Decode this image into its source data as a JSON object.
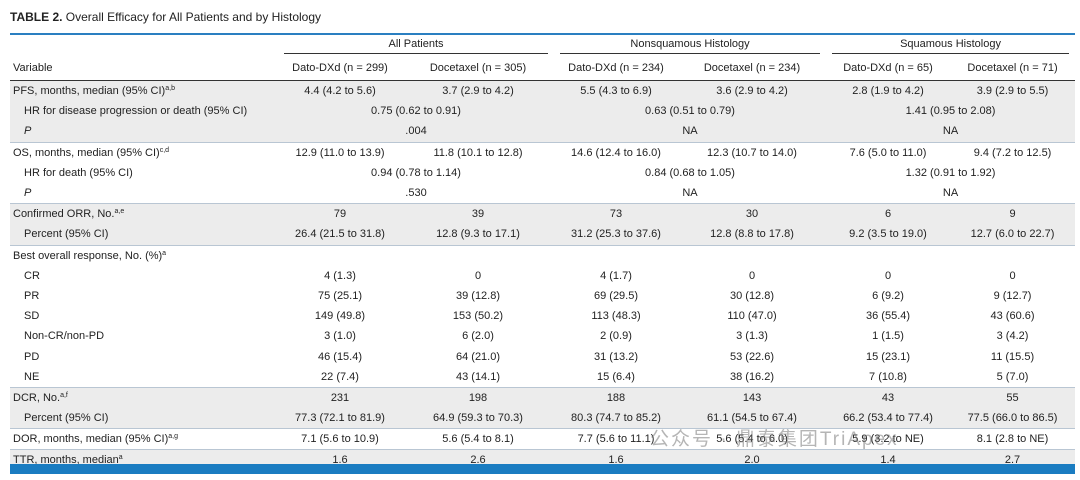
{
  "table": {
    "title": {
      "label": "TABLE 2.",
      "text": "Overall Efficacy for All Patients and by Histology"
    },
    "groups": [
      "All Patients",
      "Nonsquamous Histology",
      "Squamous Histology"
    ],
    "variable_header": "Variable",
    "columns": [
      "Dato-DXd (n = 299)",
      "Docetaxel (n = 305)",
      "Dato-DXd (n = 234)",
      "Docetaxel (n = 234)",
      "Dato-DXd (n = 65)",
      "Docetaxel (n = 71)"
    ],
    "sections": [
      {
        "label": "PFS, months, median (95% CI)",
        "sup": "a,b",
        "cells": [
          "4.4 (4.2 to 5.6)",
          "3.7 (2.9 to 4.2)",
          "5.5 (4.3 to 6.9)",
          "3.6 (2.9 to 4.2)",
          "2.8 (1.9 to 4.2)",
          "3.9 (2.9 to 5.5)"
        ],
        "subrows": [
          {
            "label": "HR for disease progression or death (95% CI)",
            "cells": [
              "0.75 (0.62 to 0.91)",
              "0.63 (0.51 to 0.79)",
              "1.41 (0.95 to 2.08)"
            ]
          },
          {
            "label": "P",
            "cells": [
              ".004",
              "NA",
              "NA"
            ]
          }
        ]
      },
      {
        "label": "OS, months, median (95% CI)",
        "sup": "c,d",
        "cells": [
          "12.9 (11.0 to 13.9)",
          "11.8 (10.1 to 12.8)",
          "14.6 (12.4 to 16.0)",
          "12.3 (10.7 to 14.0)",
          "7.6 (5.0 to 11.0)",
          "9.4 (7.2 to 12.5)"
        ],
        "subrows": [
          {
            "label": "HR for death (95% CI)",
            "cells": [
              "0.94 (0.78 to 1.14)",
              "0.84 (0.68 to 1.05)",
              "1.32 (0.91 to 1.92)"
            ]
          },
          {
            "label": "P",
            "cells": [
              ".530",
              "NA",
              "NA"
            ]
          }
        ]
      },
      {
        "label": "Confirmed ORR, No.",
        "sup": "a,e",
        "cells": [
          "79",
          "39",
          "73",
          "30",
          "6",
          "9"
        ],
        "subrows": [
          {
            "label": "Percent (95% CI)",
            "cells": [
              "26.4 (21.5 to 31.8)",
              "12.8 (9.3 to 17.1)",
              "31.2 (25.3 to 37.6)",
              "12.8 (8.8 to 17.8)",
              "9.2 (3.5 to 19.0)",
              "12.7 (6.0 to 22.7)"
            ]
          }
        ]
      },
      {
        "label": "Best overall response, No. (%)",
        "sup": "a",
        "cells": [],
        "subrows": [
          {
            "label": "CR",
            "cells": [
              "4 (1.3)",
              "0",
              "4 (1.7)",
              "0",
              "0",
              "0"
            ]
          },
          {
            "label": "PR",
            "cells": [
              "75 (25.1)",
              "39 (12.8)",
              "69 (29.5)",
              "30 (12.8)",
              "6 (9.2)",
              "9 (12.7)"
            ]
          },
          {
            "label": "SD",
            "cells": [
              "149 (49.8)",
              "153 (50.2)",
              "113 (48.3)",
              "110 (47.0)",
              "36 (55.4)",
              "43 (60.6)"
            ]
          },
          {
            "label": "Non-CR/non-PD",
            "cells": [
              "3 (1.0)",
              "6 (2.0)",
              "2 (0.9)",
              "3 (1.3)",
              "1 (1.5)",
              "3 (4.2)"
            ]
          },
          {
            "label": "PD",
            "cells": [
              "46 (15.4)",
              "64 (21.0)",
              "31 (13.2)",
              "53 (22.6)",
              "15 (23.1)",
              "11 (15.5)"
            ]
          },
          {
            "label": "NE",
            "cells": [
              "22 (7.4)",
              "43 (14.1)",
              "15 (6.4)",
              "38 (16.2)",
              "7 (10.8)",
              "5 (7.0)"
            ]
          }
        ]
      },
      {
        "label": "DCR, No.",
        "sup": "a,f",
        "cells": [
          "231",
          "198",
          "188",
          "143",
          "43",
          "55"
        ],
        "subrows": [
          {
            "label": "Percent (95% CI)",
            "cells": [
              "77.3 (72.1 to 81.9)",
              "64.9 (59.3 to 70.3)",
              "80.3 (74.7 to 85.2)",
              "61.1 (54.5 to 67.4)",
              "66.2 (53.4 to 77.4)",
              "77.5 (66.0 to 86.5)"
            ]
          }
        ]
      },
      {
        "label": "DOR, months, median (95% CI)",
        "sup": "a,g",
        "cells": [
          "7.1 (5.6 to 10.9)",
          "5.6 (5.4 to 8.1)",
          "7.7 (5.6 to 11.1)",
          "5.6 (5.4 to 6.0)",
          "5.9 (3.2 to NE)",
          "8.1 (2.8 to NE)"
        ],
        "subrows": []
      },
      {
        "label": "TTR, months, median",
        "sup": "a",
        "cells": [
          "1.6",
          "2.6",
          "1.6",
          "2.0",
          "1.4",
          "2.7"
        ],
        "subrows": []
      }
    ],
    "watermark": "公众号 · 鼎泰集团TriApex"
  }
}
